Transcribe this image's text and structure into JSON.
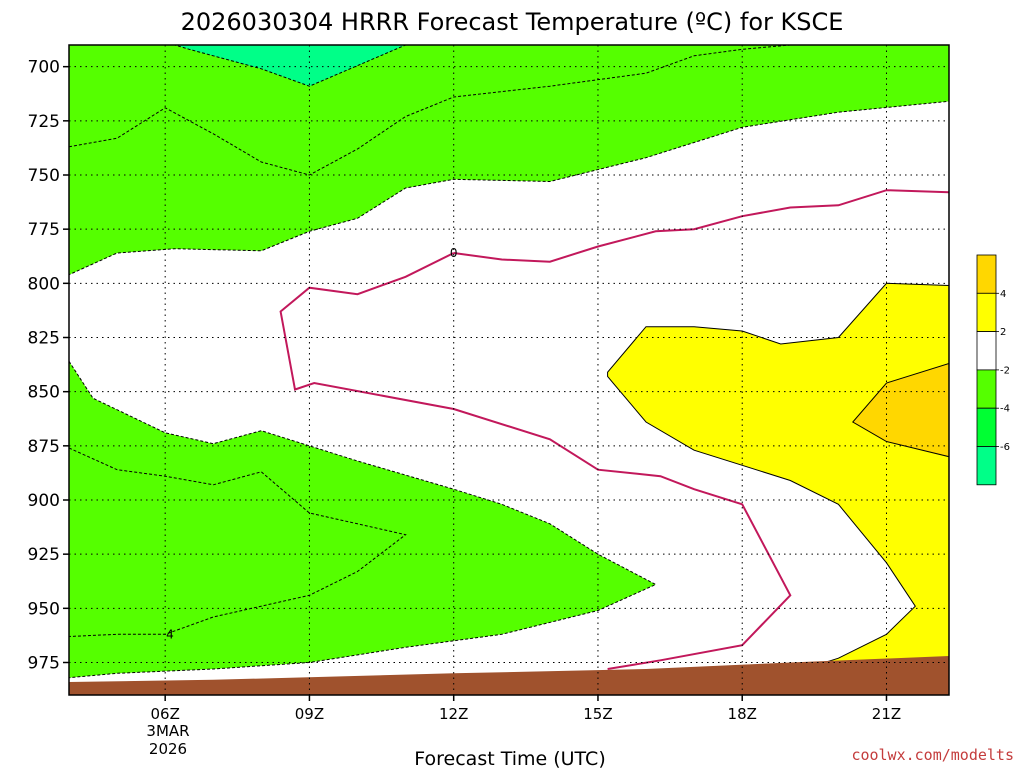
{
  "chart_data": {
    "type": "filled-contour",
    "title": "2026030304 HRRR Forecast Temperature (ºC) for KSCE",
    "xlabel": "Forecast Time (UTC)",
    "credit": "coolwx.com/modelts",
    "x_range": [
      4,
      22.3
    ],
    "y_range": [
      990,
      690
    ],
    "y_ticks": [
      {
        "value": 700,
        "label": "700"
      },
      {
        "value": 725,
        "label": "725"
      },
      {
        "value": 750,
        "label": "750"
      },
      {
        "value": 775,
        "label": "775"
      },
      {
        "value": 800,
        "label": "800"
      },
      {
        "value": 825,
        "label": "825"
      },
      {
        "value": 850,
        "label": "850"
      },
      {
        "value": 875,
        "label": "875"
      },
      {
        "value": 900,
        "label": "900"
      },
      {
        "value": 925,
        "label": "925"
      },
      {
        "value": 950,
        "label": "950"
      },
      {
        "value": 975,
        "label": "975"
      }
    ],
    "x_ticks": [
      {
        "value": 6,
        "label": "06Z"
      },
      {
        "value": 9,
        "label": "09Z"
      },
      {
        "value": 12,
        "label": "12Z"
      },
      {
        "value": 15,
        "label": "15Z"
      },
      {
        "value": 18,
        "label": "18Z"
      },
      {
        "value": 21,
        "label": "21Z"
      }
    ],
    "date_label": [
      "3MAR",
      "2026"
    ],
    "grid": "dotted",
    "legend": {
      "placement": "right",
      "bands": [
        {
          "color": "#ffd700"
        },
        {
          "color": "#ffff00"
        },
        {
          "color": "#ffffff"
        },
        {
          "color": "#55ff00"
        },
        {
          "color": "#00ff33"
        },
        {
          "color": "#00ff88"
        }
      ],
      "labels": [
        "4",
        "2",
        "-2",
        "-4",
        "-6"
      ]
    },
    "contour_labels": [
      {
        "text": "0",
        "x": 12.0,
        "y": 786
      },
      {
        "text": "4",
        "x": 6.1,
        "y": 962
      }
    ],
    "regions": [
      {
        "name": "minus4-upper",
        "fill": "#55ff00",
        "stroke": "none",
        "points": [
          [
            4,
            690
          ],
          [
            22.3,
            690
          ],
          [
            22.3,
            716
          ],
          [
            20,
            721
          ],
          [
            18,
            728
          ],
          [
            16,
            742
          ],
          [
            14,
            753
          ],
          [
            12,
            752
          ],
          [
            11,
            756
          ],
          [
            10,
            770
          ],
          [
            9,
            776
          ],
          [
            8,
            785
          ],
          [
            6.2,
            784
          ],
          [
            5,
            786
          ],
          [
            4,
            796
          ]
        ]
      },
      {
        "name": "minus2-upper",
        "fill": "#55ff00",
        "stroke": "#000",
        "points": [
          [
            4,
            737
          ],
          [
            5,
            733
          ],
          [
            6,
            719
          ],
          [
            7,
            731
          ],
          [
            8,
            744
          ],
          [
            9,
            750
          ],
          [
            10,
            738
          ],
          [
            11,
            723
          ],
          [
            12,
            714
          ],
          [
            14,
            709
          ],
          [
            16,
            703
          ],
          [
            17,
            695
          ],
          [
            18,
            692
          ],
          [
            19,
            690
          ],
          [
            22.3,
            690
          ],
          [
            22.3,
            716
          ],
          [
            20,
            721
          ],
          [
            18,
            728
          ],
          [
            16,
            742
          ],
          [
            14,
            753
          ],
          [
            12,
            752
          ],
          [
            11,
            756
          ],
          [
            10,
            770
          ],
          [
            9,
            776
          ],
          [
            8,
            785
          ],
          [
            6.2,
            784
          ],
          [
            5,
            786
          ],
          [
            4,
            796
          ]
        ]
      },
      {
        "name": "minus6-upper",
        "fill": "#00ff88",
        "stroke": "#000",
        "points": [
          [
            6.2,
            690
          ],
          [
            11,
            690
          ],
          [
            9,
            709
          ],
          [
            8,
            701
          ],
          [
            7,
            695
          ],
          [
            6.5,
            692
          ]
        ]
      },
      {
        "name": "minus2-lower",
        "fill": "#55ff00",
        "stroke": "#000",
        "points": [
          [
            4,
            836
          ],
          [
            4.5,
            853
          ],
          [
            6,
            869
          ],
          [
            7,
            874
          ],
          [
            8,
            868
          ],
          [
            10,
            882
          ],
          [
            12,
            895
          ],
          [
            13,
            902
          ],
          [
            14,
            911
          ],
          [
            15,
            925
          ],
          [
            16.2,
            939
          ],
          [
            15,
            951
          ],
          [
            13,
            962
          ],
          [
            11,
            968
          ],
          [
            9,
            975
          ],
          [
            7,
            978
          ],
          [
            5,
            980
          ],
          [
            4,
            982
          ]
        ]
      },
      {
        "name": "minus4-lower",
        "fill": "#55ff00",
        "stroke": "#000",
        "points": [
          [
            4,
            876
          ],
          [
            5,
            886
          ],
          [
            6,
            889
          ],
          [
            7,
            893
          ],
          [
            8,
            887
          ],
          [
            9,
            906
          ],
          [
            10,
            911
          ],
          [
            11,
            916
          ],
          [
            10,
            933
          ],
          [
            9,
            944
          ],
          [
            7,
            954
          ],
          [
            6,
            962
          ],
          [
            5,
            962
          ],
          [
            4,
            963
          ]
        ]
      },
      {
        "name": "plus2",
        "fill": "#ffff00",
        "stroke": "#000",
        "points": [
          [
            15.2,
            841
          ],
          [
            16,
            820
          ],
          [
            17,
            820
          ],
          [
            18,
            822
          ],
          [
            18.8,
            828
          ],
          [
            20,
            825
          ],
          [
            21,
            800
          ],
          [
            22.3,
            801
          ],
          [
            22.3,
            990
          ],
          [
            20,
            990
          ],
          [
            19,
            980
          ],
          [
            20,
            973
          ],
          [
            21,
            962
          ],
          [
            21.6,
            949
          ],
          [
            21,
            929
          ],
          [
            20,
            902
          ],
          [
            19,
            891
          ],
          [
            18,
            884
          ],
          [
            17,
            877
          ],
          [
            16,
            864
          ],
          [
            15.2,
            843
          ]
        ]
      },
      {
        "name": "plus4",
        "fill": "#ffd700",
        "stroke": "#000",
        "points": [
          [
            22.3,
            837
          ],
          [
            21,
            846
          ],
          [
            20.3,
            864
          ],
          [
            21,
            873
          ],
          [
            22.3,
            880
          ]
        ]
      },
      {
        "name": "ground",
        "fill": "#a0522d",
        "stroke": "none",
        "points": [
          [
            4,
            990
          ],
          [
            4,
            984
          ],
          [
            7,
            983
          ],
          [
            12,
            980
          ],
          [
            16,
            978
          ],
          [
            19,
            975
          ],
          [
            22.3,
            972
          ],
          [
            22.3,
            990
          ]
        ]
      }
    ],
    "isotherm_zero": {
      "color": "#c2185b",
      "points": [
        [
          12,
          786
        ],
        [
          11,
          797
        ],
        [
          10,
          805
        ],
        [
          9,
          802
        ],
        [
          8.4,
          813
        ],
        [
          8.7,
          849
        ],
        [
          9.1,
          846
        ],
        [
          12,
          858
        ],
        [
          14,
          872
        ],
        [
          15,
          886
        ],
        [
          16.3,
          889
        ],
        [
          17,
          895
        ],
        [
          18,
          902
        ],
        [
          19,
          944
        ],
        [
          18,
          967
        ],
        [
          16.3,
          974
        ],
        [
          15.2,
          978
        ]
      ],
      "upper_branch": [
        [
          12,
          786
        ],
        [
          13,
          789
        ],
        [
          14,
          790
        ],
        [
          15,
          783
        ],
        [
          16.2,
          776
        ],
        [
          17,
          775
        ],
        [
          18,
          769
        ],
        [
          19,
          765
        ],
        [
          20,
          764
        ],
        [
          21,
          757
        ],
        [
          22.3,
          758
        ]
      ]
    }
  }
}
